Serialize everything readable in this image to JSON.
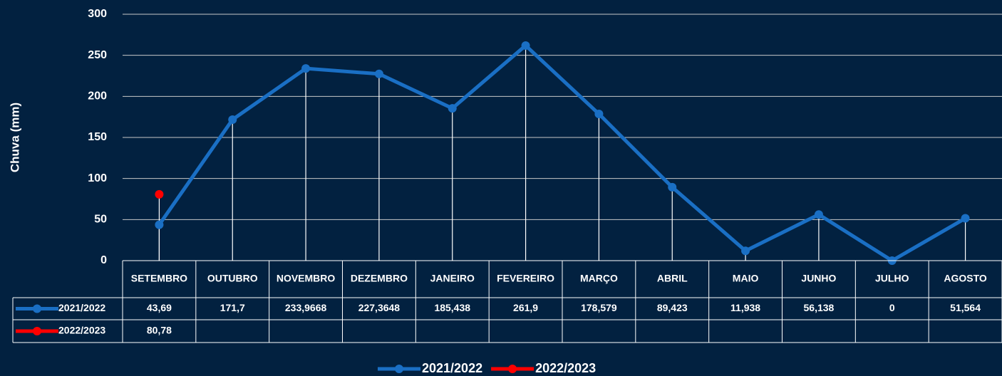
{
  "chart_data": {
    "type": "line",
    "y_label": "Chuva (mm)",
    "categories": [
      "SETEMBRO",
      "OUTUBRO",
      "NOVEMBRO",
      "DEZEMBRO",
      "JANEIRO",
      "FEVEREIRO",
      "MARÇO",
      "ABRIL",
      "MAIO",
      "JUNHO",
      "JULHO",
      "AGOSTO"
    ],
    "series": [
      {
        "name": "2021/2022",
        "color": "#1a6fc4",
        "values": [
          43.69,
          171.7,
          233.9668,
          227.3648,
          185.438,
          261.9,
          178.579,
          89.423,
          11.938,
          56.138,
          0,
          51.564
        ],
        "value_labels": [
          "43,69",
          "171,7",
          "233,9668",
          "227,3648",
          "185,438",
          "261,9",
          "178,579",
          "89,423",
          "11,938",
          "56,138",
          "0",
          "51,564"
        ]
      },
      {
        "name": "2022/2023",
        "color": "#ff0000",
        "values": [
          80.78,
          null,
          null,
          null,
          null,
          null,
          null,
          null,
          null,
          null,
          null,
          null
        ],
        "value_labels": [
          "80,78",
          null,
          null,
          null,
          null,
          null,
          null,
          null,
          null,
          null,
          null,
          null
        ]
      }
    ],
    "ylim": [
      0,
      300
    ],
    "yticks": [
      0,
      50,
      100,
      150,
      200,
      250,
      300
    ],
    "grid": true,
    "legend": "bottom"
  }
}
